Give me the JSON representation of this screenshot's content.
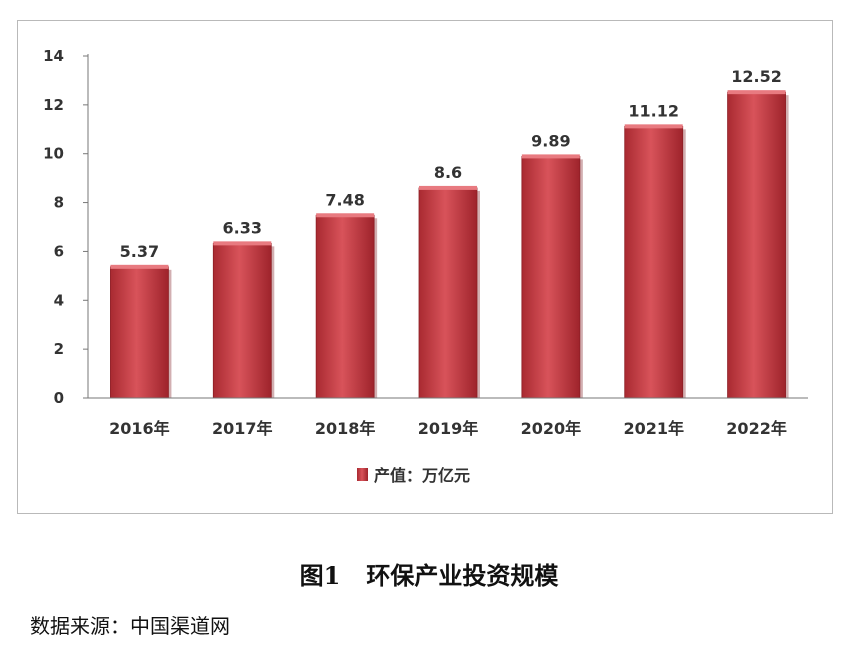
{
  "chart_data": {
    "type": "bar",
    "categories": [
      "2016年",
      "2017年",
      "2018年",
      "2019年",
      "2020年",
      "2021年",
      "2022年"
    ],
    "series": [
      {
        "name": "产值：万亿元",
        "values": [
          5.37,
          6.33,
          7.48,
          8.6,
          9.89,
          11.12,
          12.52
        ]
      }
    ],
    "data_labels": [
      "5.37",
      "6.33",
      "7.48",
      "8.6",
      "9.89",
      "11.12",
      "12.52"
    ],
    "y_ticks": [
      "0",
      "2",
      "4",
      "6",
      "8",
      "10",
      "12",
      "14"
    ],
    "ylim": [
      0,
      14
    ],
    "grid": false,
    "legend_position": "bottom",
    "bar_color": "#c0383f",
    "title": "",
    "xlabel": "",
    "ylabel": ""
  },
  "caption": {
    "figure_number": "图1",
    "title": "环保产业投资规模"
  },
  "source": "数据来源：中国渠道网"
}
